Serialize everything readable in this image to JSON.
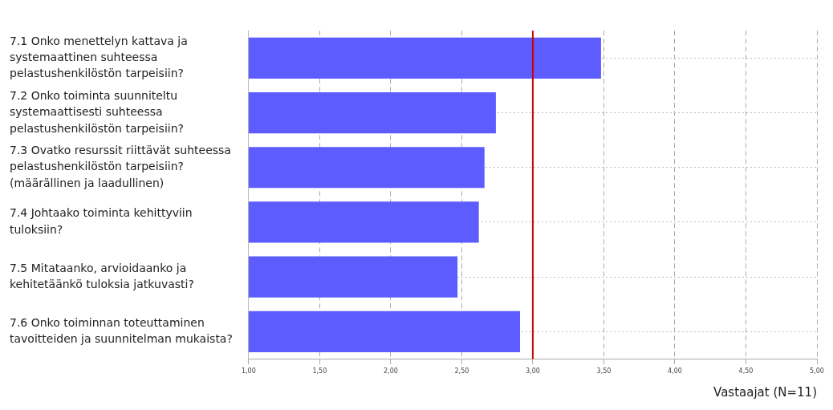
{
  "chart_data": {
    "type": "bar",
    "orientation": "horizontal",
    "xlabel": "Vastaajat (N=11)",
    "categories": [
      "7.1 Onko menettelyn kattava ja\nsystemaattinen suhteessa\npelastushenkilöstön tarpeisiin?",
      "7.2 Onko toiminta suunniteltu\nsystemaattisesti suhteessa\npelastushenkilöstön tarpeisiin?",
      "7.3 Ovatko resurssit riittävät suhteessa\npelastushenkilöstön tarpeisiin?\n(määrällinen ja laadullinen)",
      "7.4 Johtaako toiminta kehittyviin\ntuloksiin?",
      "7.5 Mitataanko, arvioidaanko ja\nkehitetäänkö tuloksia jatkuvasti?",
      "7.6 Onko toiminnan toteuttaminen\ntavoitteiden ja suunnitelman mukaista?"
    ],
    "values": [
      3.48,
      2.74,
      2.66,
      2.62,
      2.47,
      2.91
    ],
    "color": "#5c5cff",
    "xlim": [
      1,
      5
    ],
    "xticks": [
      {
        "value": 1,
        "label": "1,00"
      },
      {
        "value": 1.5,
        "label": "1,50"
      },
      {
        "value": 2,
        "label": "2,00"
      },
      {
        "value": 2.5,
        "label": "2,50"
      },
      {
        "value": 3,
        "label": "3,00"
      },
      {
        "value": 3.5,
        "label": "3,50"
      },
      {
        "value": 4,
        "label": "4,00"
      },
      {
        "value": 4.5,
        "label": "4,50"
      },
      {
        "value": 5,
        "label": "5,00"
      }
    ],
    "ref_lines": [
      {
        "axis": "x",
        "value": 3,
        "color": "#cc0000"
      }
    ],
    "grid": true,
    "legend": false
  }
}
